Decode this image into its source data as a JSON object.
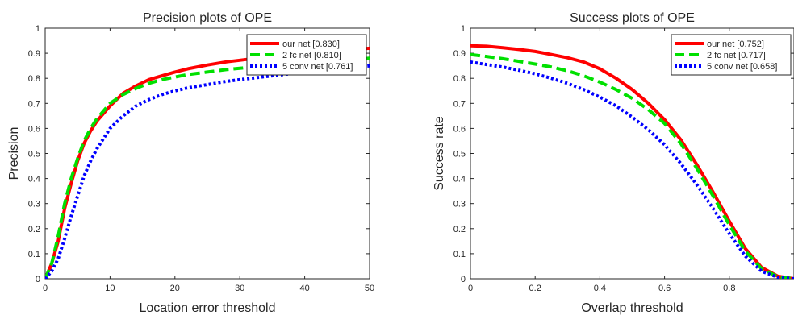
{
  "chart_data": [
    {
      "type": "line",
      "title": "Precision plots of OPE",
      "xlabel": "Location error threshold",
      "ylabel": "Precision",
      "xlim": [
        0,
        50
      ],
      "ylim": [
        0,
        1
      ],
      "xticks": [
        0,
        10,
        20,
        30,
        40,
        50
      ],
      "yticks": [
        0,
        0.1,
        0.2,
        0.3,
        0.4,
        0.5,
        0.6,
        0.7,
        0.8,
        0.9,
        1
      ],
      "grid": false,
      "legend_position": "top-right",
      "series": [
        {
          "name": "our net [0.830]",
          "color": "#ff0000",
          "style": "solid",
          "x": [
            0,
            1,
            2,
            3,
            4,
            5,
            6,
            7,
            8,
            10,
            12,
            14,
            16,
            18,
            20,
            22,
            25,
            28,
            30,
            35,
            40,
            45,
            50
          ],
          "y": [
            0.0,
            0.06,
            0.15,
            0.28,
            0.38,
            0.47,
            0.54,
            0.59,
            0.63,
            0.69,
            0.74,
            0.77,
            0.795,
            0.81,
            0.825,
            0.838,
            0.853,
            0.866,
            0.872,
            0.888,
            0.9,
            0.91,
            0.92
          ]
        },
        {
          "name": "2 fc net [0.810]",
          "color": "#00e000",
          "style": "dashed",
          "x": [
            0,
            1,
            2,
            3,
            4,
            5,
            6,
            7,
            8,
            10,
            12,
            14,
            16,
            18,
            20,
            22,
            25,
            28,
            30,
            35,
            40,
            45,
            50
          ],
          "y": [
            0.0,
            0.06,
            0.17,
            0.3,
            0.4,
            0.48,
            0.55,
            0.6,
            0.64,
            0.7,
            0.735,
            0.76,
            0.78,
            0.795,
            0.805,
            0.815,
            0.825,
            0.835,
            0.84,
            0.852,
            0.862,
            0.87,
            0.88
          ]
        },
        {
          "name": "5 conv net [0.761]",
          "color": "#0000ff",
          "style": "dotted",
          "x": [
            0,
            1,
            2,
            3,
            4,
            5,
            6,
            7,
            8,
            10,
            12,
            14,
            16,
            18,
            20,
            22,
            25,
            28,
            30,
            35,
            40,
            45,
            50
          ],
          "y": [
            0.0,
            0.03,
            0.08,
            0.16,
            0.25,
            0.33,
            0.41,
            0.47,
            0.52,
            0.6,
            0.65,
            0.69,
            0.715,
            0.735,
            0.75,
            0.762,
            0.775,
            0.788,
            0.795,
            0.81,
            0.825,
            0.838,
            0.85
          ]
        }
      ]
    },
    {
      "type": "line",
      "title": "Success plots of OPE",
      "xlabel": "Overlap threshold",
      "ylabel": "Success rate",
      "xlim": [
        0,
        1
      ],
      "ylim": [
        0,
        1
      ],
      "xticks": [
        0,
        0.2,
        0.4,
        0.6,
        0.8
      ],
      "yticks": [
        0,
        0.1,
        0.2,
        0.3,
        0.4,
        0.5,
        0.6,
        0.7,
        0.8,
        0.9,
        1
      ],
      "grid": false,
      "legend_position": "top-right",
      "series": [
        {
          "name": "our net [0.752]",
          "color": "#ff0000",
          "style": "solid",
          "x": [
            0,
            0.05,
            0.1,
            0.15,
            0.2,
            0.25,
            0.3,
            0.35,
            0.4,
            0.45,
            0.5,
            0.55,
            0.6,
            0.65,
            0.7,
            0.75,
            0.8,
            0.85,
            0.9,
            0.95,
            1.0
          ],
          "y": [
            0.93,
            0.928,
            0.922,
            0.915,
            0.907,
            0.895,
            0.882,
            0.865,
            0.838,
            0.8,
            0.755,
            0.7,
            0.635,
            0.555,
            0.455,
            0.345,
            0.23,
            0.12,
            0.045,
            0.01,
            0.0
          ]
        },
        {
          "name": "2 fc net [0.717]",
          "color": "#00e000",
          "style": "dashed",
          "x": [
            0,
            0.05,
            0.1,
            0.15,
            0.2,
            0.25,
            0.3,
            0.35,
            0.4,
            0.45,
            0.5,
            0.55,
            0.6,
            0.65,
            0.7,
            0.75,
            0.8,
            0.85,
            0.9,
            0.95,
            1.0
          ],
          "y": [
            0.895,
            0.887,
            0.878,
            0.868,
            0.857,
            0.845,
            0.83,
            0.81,
            0.785,
            0.755,
            0.72,
            0.675,
            0.62,
            0.54,
            0.44,
            0.33,
            0.215,
            0.11,
            0.04,
            0.008,
            0.0
          ]
        },
        {
          "name": "5 conv net [0.658]",
          "color": "#0000ff",
          "style": "dotted",
          "x": [
            0,
            0.05,
            0.1,
            0.15,
            0.2,
            0.25,
            0.3,
            0.35,
            0.4,
            0.45,
            0.5,
            0.55,
            0.6,
            0.65,
            0.7,
            0.75,
            0.8,
            0.85,
            0.9,
            0.95,
            1.0
          ],
          "y": [
            0.865,
            0.855,
            0.845,
            0.832,
            0.818,
            0.8,
            0.78,
            0.755,
            0.725,
            0.69,
            0.645,
            0.595,
            0.535,
            0.46,
            0.375,
            0.28,
            0.18,
            0.09,
            0.03,
            0.006,
            0.0
          ]
        }
      ]
    }
  ]
}
